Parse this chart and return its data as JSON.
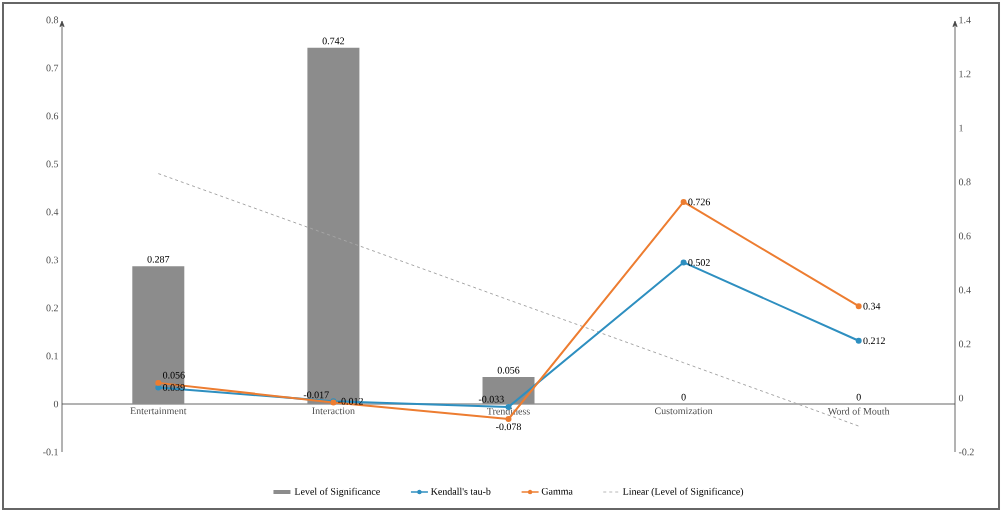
{
  "chart_data": {
    "type": "bar",
    "categories": [
      "Entertainment",
      "Interaction",
      "Trendiness",
      "Customization",
      "Word of Mouth"
    ],
    "series": [
      {
        "name": "Level of Significance",
        "color": "#8c8c8c",
        "values": [
          0.287,
          0.742,
          0.056,
          0,
          0
        ],
        "value_labels": [
          "0.287",
          "0.742",
          "0.056",
          "0",
          "0"
        ]
      },
      {
        "name": "Kendall's tau-b",
        "type": "line",
        "axis": "y2",
        "color": "#2e8fc0",
        "marker": "circle",
        "values": [
          0.039,
          -0.012,
          -0.033,
          0.502,
          0.212
        ],
        "value_labels": [
          "0.039",
          "-0.012",
          "-0.033",
          "0.502",
          "0.212"
        ]
      },
      {
        "name": "Gamma",
        "type": "line",
        "axis": "y2",
        "color": "#ed7d31",
        "marker": "circle",
        "values": [
          0.056,
          -0.017,
          -0.078,
          0.726,
          0.34
        ],
        "value_labels": [
          "0.056",
          "-0.017",
          "-0.078",
          "0.726",
          "0.34"
        ]
      },
      {
        "name": "Linear (Level of Significance)",
        "type": "line",
        "color": "#a6a6a6",
        "line_style": "dashed",
        "marker": "none",
        "values": [
          0.48,
          0.349,
          0.217,
          0.086,
          -0.046
        ]
      }
    ],
    "ylim": [
      -0.1,
      0.8
    ],
    "yticks": [
      -0.1,
      0,
      0.1,
      0.2,
      0.3,
      0.4,
      0.5,
      0.6,
      0.7,
      0.8
    ],
    "y2lim": [
      -0.2,
      1.4
    ],
    "y2ticks": [
      -0.2,
      0,
      0.2,
      0.4,
      0.6,
      0.8,
      1,
      1.2,
      1.4
    ],
    "legend": "bottom"
  }
}
